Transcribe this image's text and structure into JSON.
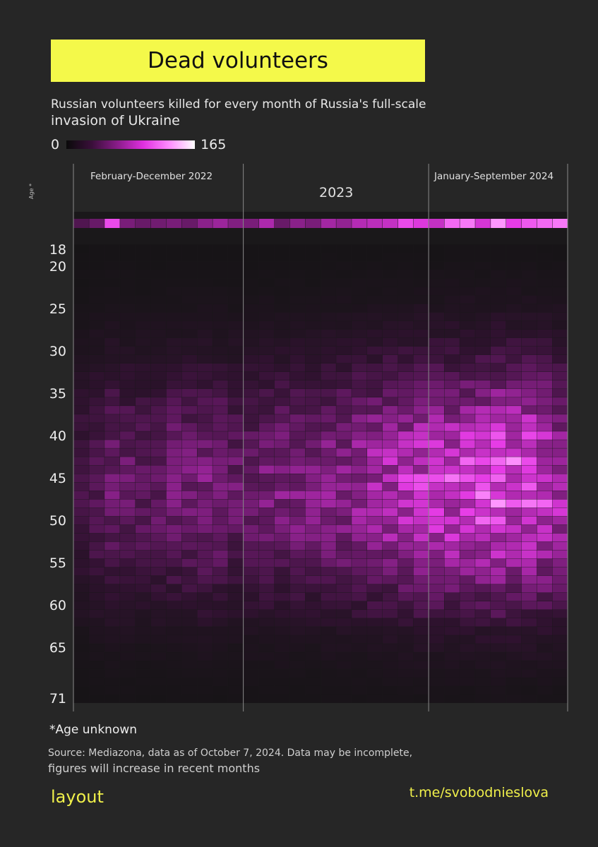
{
  "title": "Dead volunteers",
  "subtitle_line1": "Russian volunteers killed for every month of Russia's full-scale",
  "subtitle_line2": "invasion of Ukraine",
  "legend": {
    "min": "0",
    "max": "165",
    "colors": [
      "#0a0a0a",
      "#3a0f3a",
      "#8a1c8a",
      "#e030e0",
      "#ff8cff",
      "#ffffff"
    ]
  },
  "periods": [
    "February-December 2022",
    "2023",
    "January-September 2024"
  ],
  "age_axis_label": "Age *",
  "age_ticks": [
    "18",
    "20",
    "25",
    "30",
    "35",
    "40",
    "45",
    "50",
    "55",
    "60",
    "65",
    "71"
  ],
  "footnote": "*Age unknown",
  "source_line1": "Source: Mediazona, data as of October 7, 2024. Data may be incomplete,",
  "source_line2": "figures will increase in recent months",
  "brand": "layout",
  "channel": "t.me/svobodnieslova",
  "chart_data": {
    "type": "heatmap",
    "title": "Dead volunteers",
    "subtitle": "Russian volunteers killed for every month of Russia's full-scale invasion of Ukraine",
    "x_unit": "month (Feb 2022 – Sep 2024)",
    "x_groups": [
      {
        "label": "February-December 2022",
        "months": 11
      },
      {
        "label": "2023",
        "months": 12
      },
      {
        "label": "January-September 2024",
        "months": 9
      }
    ],
    "y_label": "Age",
    "y_range": [
      18,
      71
    ],
    "y_unknown_row": "*Age unknown",
    "color_scale": {
      "min": 0,
      "max": 165
    },
    "unknown_age_values": [
      45,
      60,
      140,
      70,
      60,
      65,
      70,
      60,
      80,
      90,
      75,
      70,
      100,
      60,
      80,
      70,
      95,
      85,
      105,
      110,
      115,
      140,
      130,
      115,
      150,
      155,
      125,
      165,
      135,
      145,
      150,
      155
    ],
    "monthly_intensity_profile": [
      0.22,
      0.3,
      0.38,
      0.36,
      0.32,
      0.34,
      0.4,
      0.42,
      0.44,
      0.42,
      0.36,
      0.38,
      0.42,
      0.44,
      0.46,
      0.44,
      0.48,
      0.5,
      0.54,
      0.58,
      0.62,
      0.66,
      0.7,
      0.72,
      0.74,
      0.76,
      0.8,
      0.84,
      0.82,
      0.8,
      0.74,
      0.62
    ],
    "peak_age": 46,
    "peak_value": 165
  }
}
